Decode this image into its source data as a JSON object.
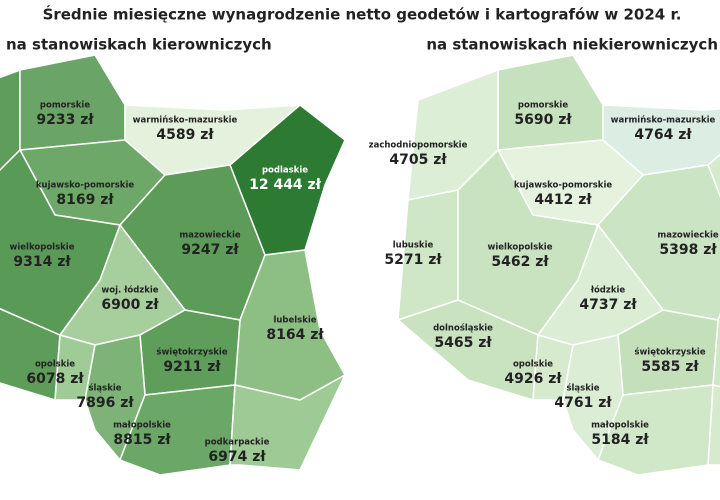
{
  "title": "Średnie miesięczne wynagrodzenie netto geodetów i kartografów w 2024 r.",
  "maps": [
    {
      "subtitle": "na stanowiskach kierowniczych",
      "regions": [
        {
          "name": "pomorskie",
          "value": "9233 zł",
          "color": "#6aa466"
        },
        {
          "name": "warmińsko-mazurskie",
          "value": "4589 zł",
          "color": "#e4f1dc"
        },
        {
          "name": "podlaskie",
          "value": "12 444 zł",
          "color": "#2d7a33"
        },
        {
          "name": "kujawsko-pomorskie",
          "value": "8169 zł",
          "color": "#6ea868"
        },
        {
          "name": "mazowieckie",
          "value": "9247 zł",
          "color": "#5d9b59"
        },
        {
          "name": "wielkopolskie",
          "value": "9314 zł",
          "color": "#5a9a57"
        },
        {
          "name": "woj. łódzkie",
          "value": "6900 zł",
          "color": "#a6cf9d"
        },
        {
          "name": "lubelskie",
          "value": "8164 zł",
          "color": "#8dbf85"
        },
        {
          "name": "świętokrzyskie",
          "value": "9211 zł",
          "color": "#5f9d5b"
        },
        {
          "name": "opolskie",
          "value": "6078 zł",
          "color": "#9fcb96"
        },
        {
          "name": "śląskie",
          "value": "7896 zł",
          "color": "#7db377"
        },
        {
          "name": "małopolskie",
          "value": "8815 zł",
          "color": "#6ba767"
        },
        {
          "name": "podkarpackie",
          "value": "6974 zł",
          "color": "#9ecb95"
        }
      ]
    },
    {
      "subtitle": "na stanowiskach niekierowniczych",
      "regions": [
        {
          "name": "pomorskie",
          "value": "5690 zł",
          "color": "#c6e1bd"
        },
        {
          "name": "warmińsko-mazurskie",
          "value": "4764 zł",
          "color": "#dcede4"
        },
        {
          "name": "zachodniopomorskie",
          "value": "4705 zł",
          "color": "#dceed6"
        },
        {
          "name": "kujawsko-pomorskie",
          "value": "4412 zł",
          "color": "#e4f2de"
        },
        {
          "name": "lubuskie",
          "value": "5271 zł",
          "color": "#cfe6c7"
        },
        {
          "name": "wielkopolskie",
          "value": "5462 zł",
          "color": "#c9e3c1"
        },
        {
          "name": "mazowieckie",
          "value": "5398 zł",
          "color": "#cbe4c3"
        },
        {
          "name": "łódzkie",
          "value": "4737 zł",
          "color": "#dbedd4"
        },
        {
          "name": "dolnośląskie",
          "value": "5465 zł",
          "color": "#c9e3c1"
        },
        {
          "name": "opolskie",
          "value": "4926 zł",
          "color": "#d6eace"
        },
        {
          "name": "świętokrzyskie",
          "value": "5585 zł",
          "color": "#c4e0bb"
        },
        {
          "name": "śląskie",
          "value": "4761 zł",
          "color": "#dbedd4"
        },
        {
          "name": "małopolskie",
          "value": "5184 zł",
          "color": "#d0e7c8"
        }
      ]
    }
  ]
}
